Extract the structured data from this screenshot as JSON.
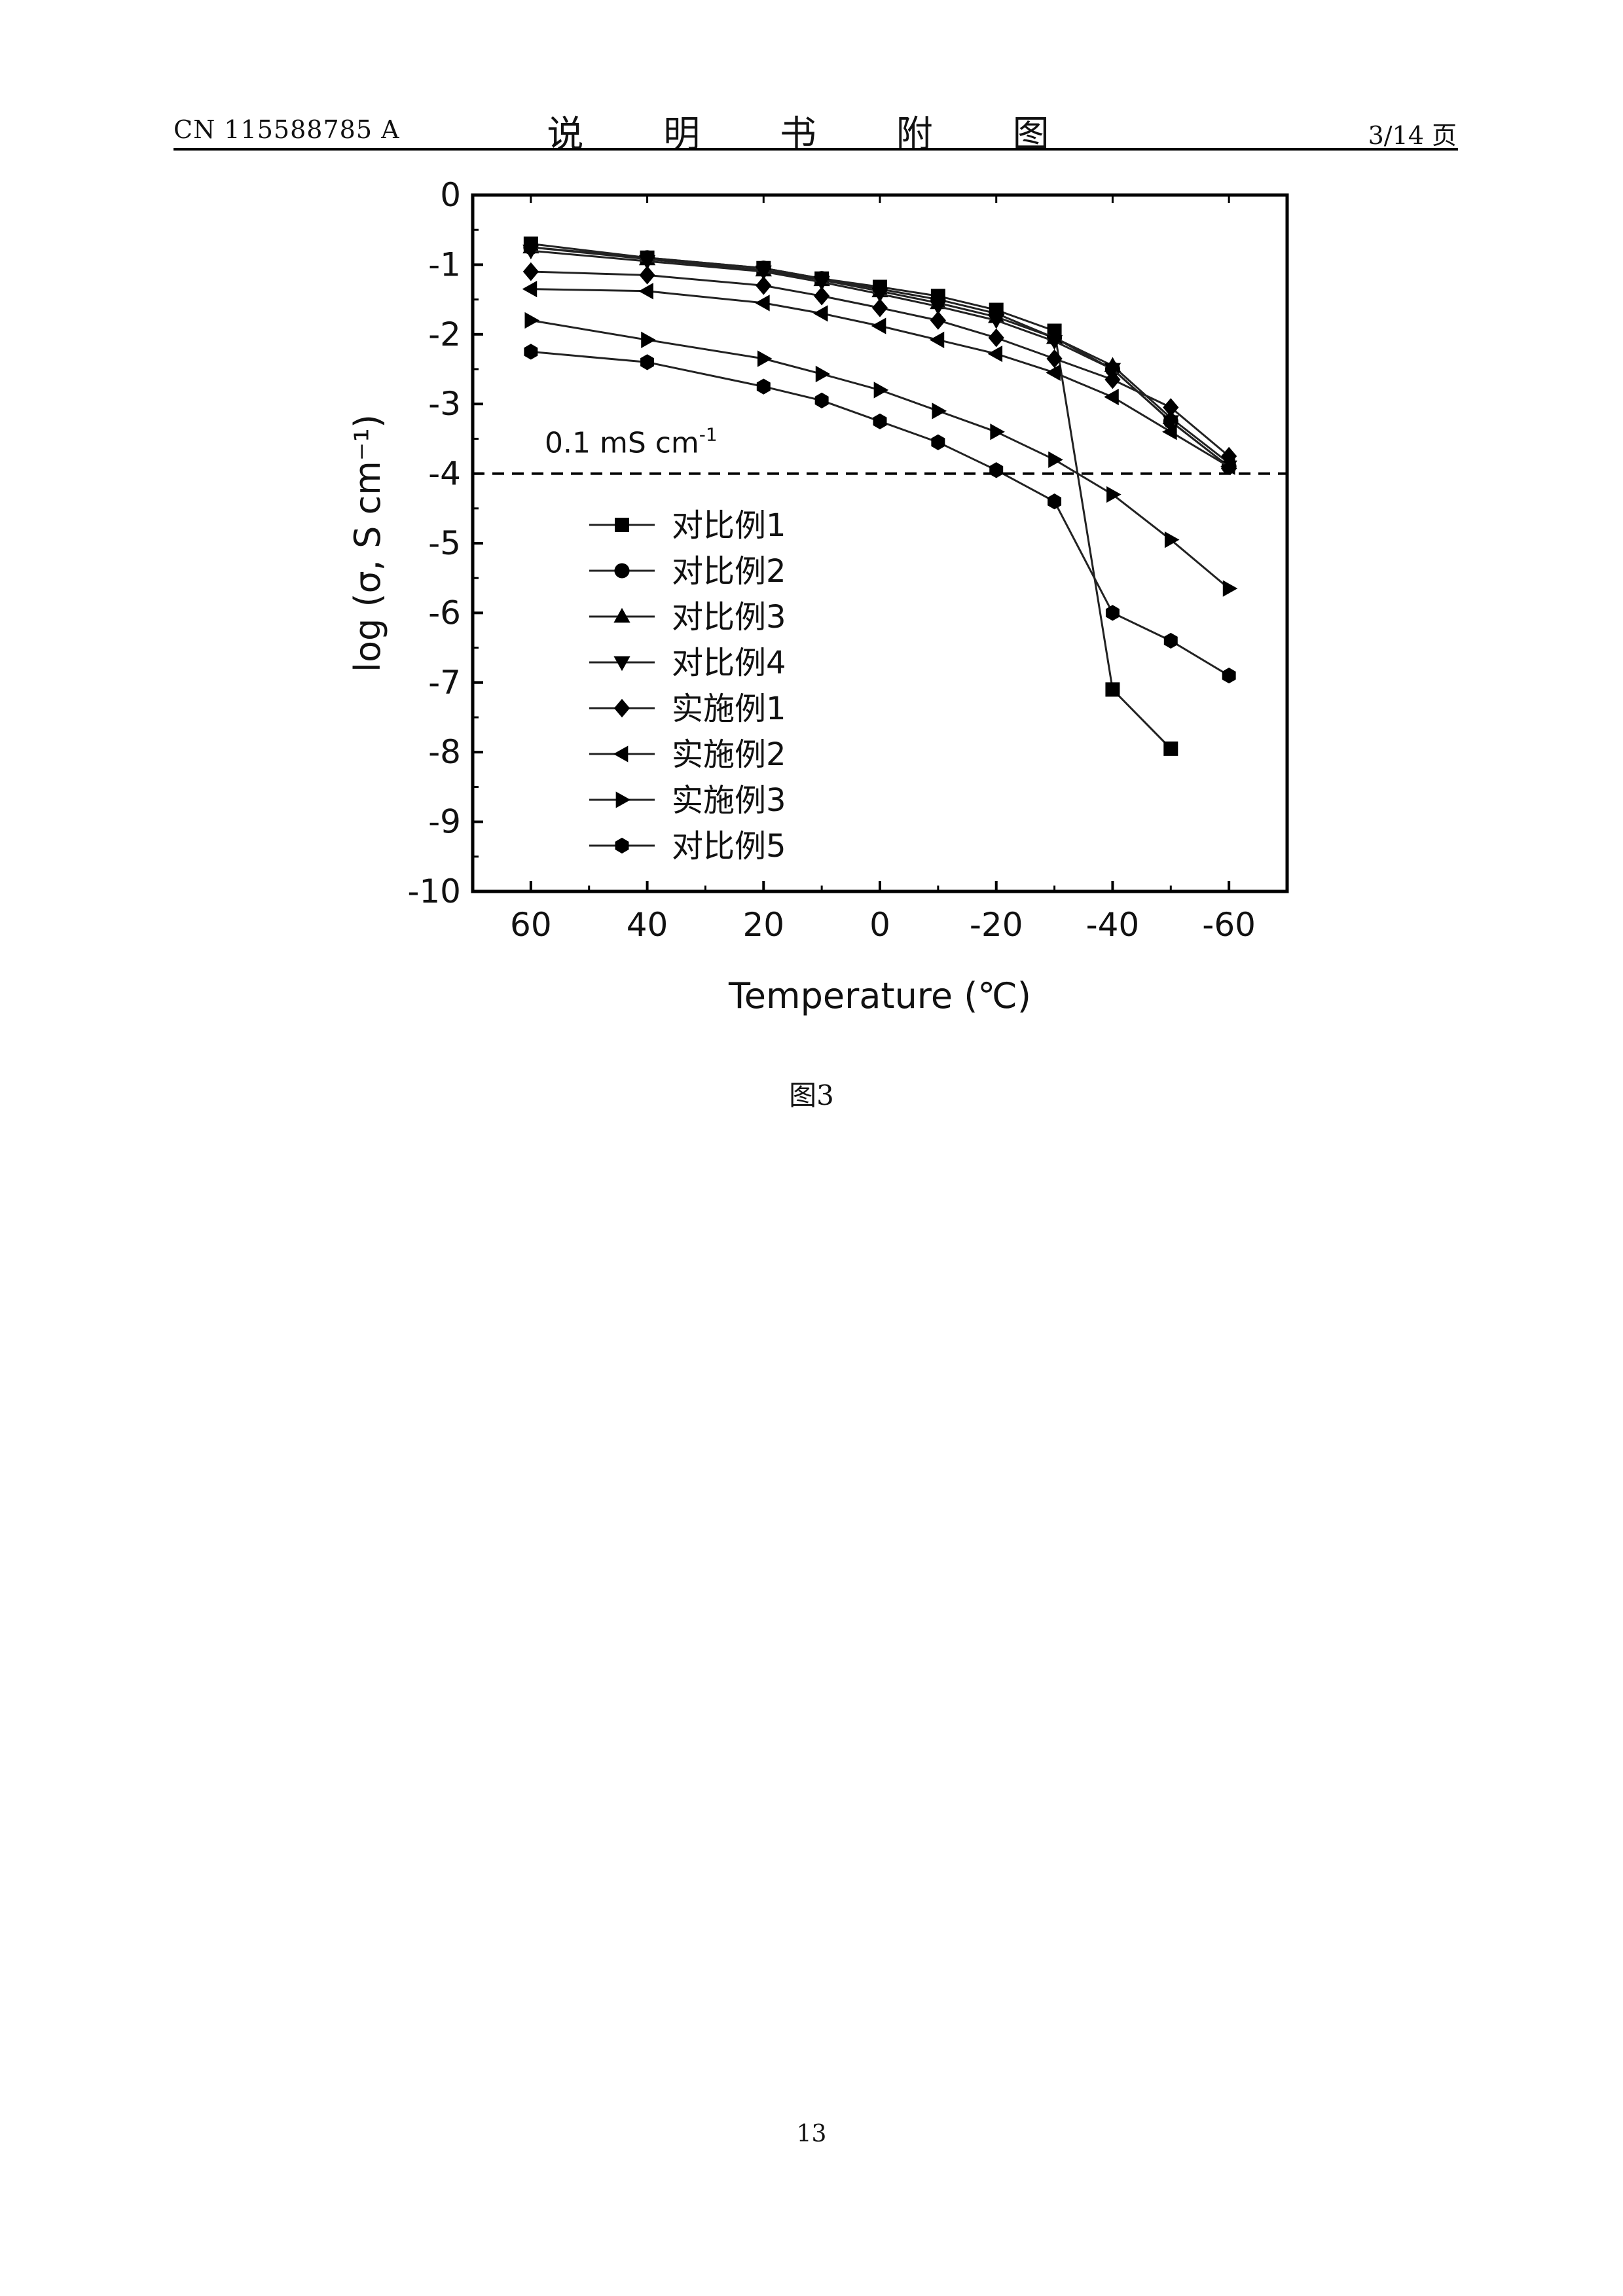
{
  "header": {
    "doc_number": "CN 115588785 A",
    "title": "说 明 书 附 图",
    "page_of": "3/14 页"
  },
  "figure_caption": "图3",
  "page_number": "13",
  "chart_data": {
    "type": "line",
    "xlabel": "Temperature (℃)",
    "ylabel": "log (σ, S cm⁻¹)",
    "xlim": [
      70,
      -70
    ],
    "x_reversed": true,
    "ylim": [
      -10,
      0
    ],
    "xticks": [
      60,
      40,
      20,
      0,
      -20,
      -40,
      -60
    ],
    "xtick_labels": [
      "60",
      "40",
      "20",
      "0",
      "-20",
      "-40",
      "-60"
    ],
    "yticks": [
      0,
      -1,
      -2,
      -3,
      -4,
      -5,
      -6,
      -7,
      -8,
      -9,
      -10
    ],
    "ytick_labels": [
      "0",
      "-1",
      "-2",
      "-3",
      "-4",
      "-5",
      "-6",
      "-7",
      "-8",
      "-9",
      "-10"
    ],
    "reference_line": {
      "y": -4,
      "style": "dashed",
      "label": "0.1 mS cm",
      "label_superscript": "-1"
    },
    "legend_position": "center-left",
    "grid": false,
    "series": [
      {
        "name": "对比例1",
        "marker": "square",
        "x": [
          60,
          40,
          20,
          10,
          0,
          -10,
          -20,
          -30,
          -40,
          -50
        ],
        "y": [
          -0.7,
          -0.9,
          -1.05,
          -1.2,
          -1.32,
          -1.45,
          -1.65,
          -1.95,
          -7.1,
          -7.95
        ]
      },
      {
        "name": "对比例2",
        "marker": "circle",
        "x": [
          60,
          40,
          20,
          10,
          0,
          -10,
          -20,
          -30,
          -40,
          -50,
          -60
        ],
        "y": [
          -0.75,
          -0.9,
          -1.05,
          -1.2,
          -1.35,
          -1.5,
          -1.7,
          -2.05,
          -2.5,
          -3.25,
          -3.9
        ]
      },
      {
        "name": "对比例3",
        "marker": "triangle-up",
        "x": [
          60,
          40,
          20,
          10,
          0,
          -10,
          -20,
          -30,
          -40,
          -50,
          -60
        ],
        "y": [
          -0.75,
          -0.92,
          -1.08,
          -1.22,
          -1.38,
          -1.55,
          -1.75,
          -2.05,
          -2.45,
          -3.2,
          -3.85
        ]
      },
      {
        "name": "对比例4",
        "marker": "triangle-down",
        "x": [
          60,
          40,
          20,
          10,
          0,
          -10,
          -20,
          -30,
          -40,
          -50,
          -60
        ],
        "y": [
          -0.8,
          -0.95,
          -1.1,
          -1.25,
          -1.42,
          -1.6,
          -1.8,
          -2.1,
          -2.5,
          -3.25,
          -3.9
        ]
      },
      {
        "name": "实施例1",
        "marker": "diamond",
        "x": [
          60,
          40,
          20,
          10,
          0,
          -10,
          -20,
          -30,
          -40,
          -50,
          -60
        ],
        "y": [
          -1.1,
          -1.15,
          -1.3,
          -1.45,
          -1.62,
          -1.8,
          -2.05,
          -2.35,
          -2.65,
          -3.05,
          -3.75
        ]
      },
      {
        "name": "实施例2",
        "marker": "triangle-left",
        "x": [
          60,
          40,
          20,
          10,
          0,
          -10,
          -20,
          -30,
          -40,
          -50,
          -60
        ],
        "y": [
          -1.35,
          -1.38,
          -1.55,
          -1.7,
          -1.88,
          -2.08,
          -2.28,
          -2.55,
          -2.9,
          -3.4,
          -3.9
        ]
      },
      {
        "name": "实施例3",
        "marker": "triangle-right",
        "x": [
          60,
          40,
          20,
          10,
          0,
          -10,
          -20,
          -30,
          -40,
          -50,
          -60
        ],
        "y": [
          -1.8,
          -2.08,
          -2.35,
          -2.57,
          -2.8,
          -3.1,
          -3.4,
          -3.8,
          -4.3,
          -4.95,
          -5.65
        ]
      },
      {
        "name": "对比例5",
        "marker": "hexagon",
        "x": [
          60,
          40,
          20,
          10,
          0,
          -10,
          -20,
          -30,
          -40,
          -50,
          -60
        ],
        "y": [
          -2.25,
          -2.4,
          -2.75,
          -2.95,
          -3.25,
          -3.55,
          -3.95,
          -4.4,
          -6.0,
          -6.4,
          -6.9
        ]
      }
    ]
  }
}
